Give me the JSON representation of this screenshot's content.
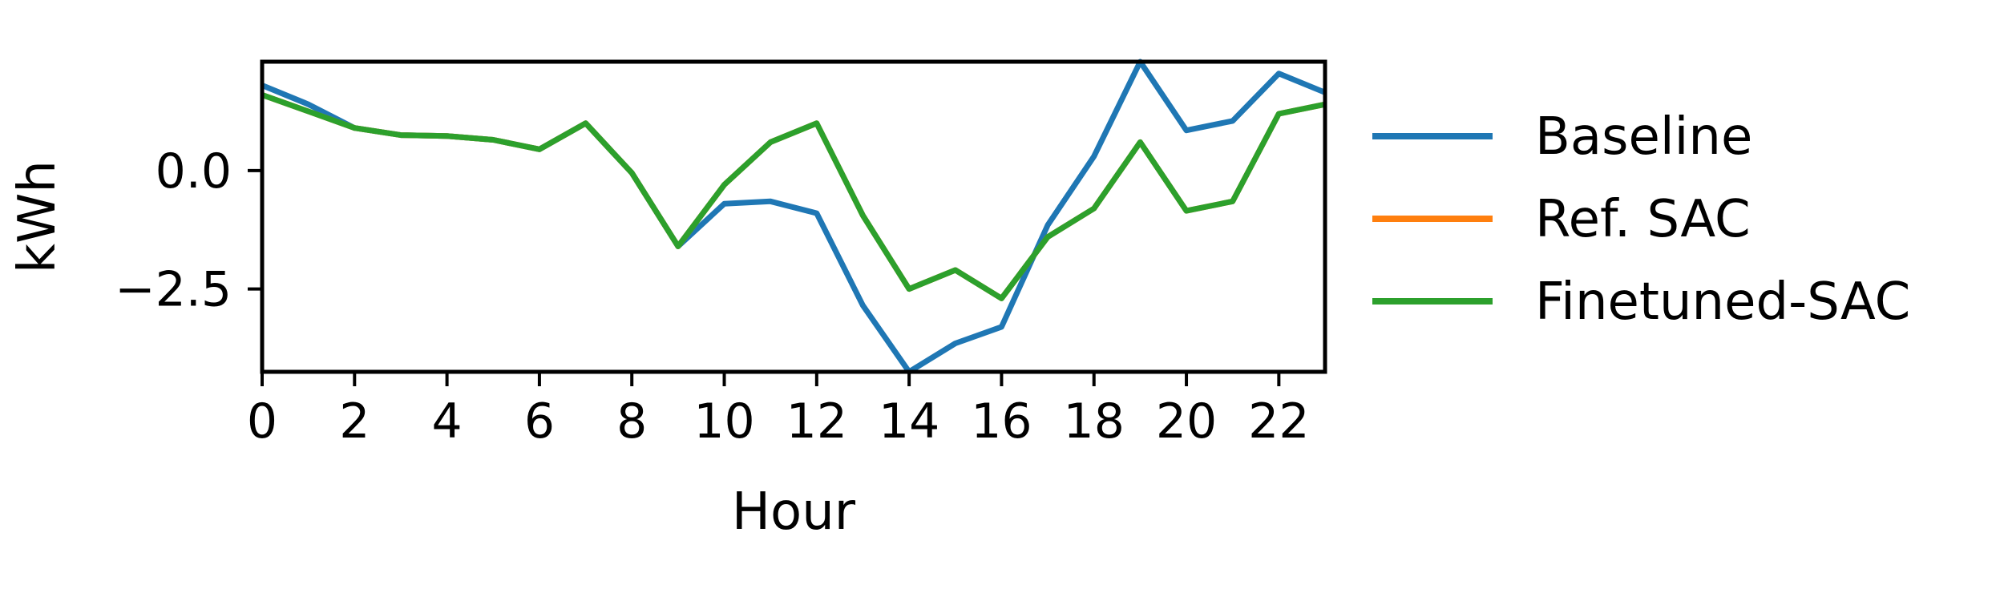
{
  "chart_data": {
    "type": "line",
    "title": "",
    "xlabel": "Hour",
    "ylabel": "kWh",
    "xlim": [
      0,
      23
    ],
    "ylim": [
      -4.25,
      2.3
    ],
    "xticks": [
      0,
      2,
      4,
      6,
      8,
      10,
      12,
      14,
      16,
      18,
      20,
      22
    ],
    "yticks": [
      -2.5,
      0.0
    ],
    "ytick_labels": [
      "−2.5",
      "0.0"
    ],
    "grid": false,
    "legend_position": "outside-right",
    "x": [
      0,
      1,
      2,
      3,
      4,
      5,
      6,
      7,
      8,
      9,
      10,
      11,
      12,
      13,
      14,
      15,
      16,
      17,
      18,
      19,
      20,
      21,
      22,
      23
    ],
    "series": [
      {
        "name": "Baseline",
        "color": "#1f77b4",
        "values": [
          1.8,
          1.4,
          0.9,
          0.75,
          0.73,
          0.65,
          0.45,
          1.0,
          -0.05,
          -1.6,
          -0.7,
          -0.65,
          -0.9,
          -2.85,
          -4.25,
          -3.65,
          -3.3,
          -1.15,
          0.3,
          2.3,
          0.85,
          1.05,
          2.05,
          1.65
        ]
      },
      {
        "name": "Ref. SAC",
        "color": "#ff7f0e",
        "values": [
          1.6,
          1.25,
          0.9,
          0.75,
          0.73,
          0.65,
          0.45,
          1.0,
          -0.05,
          -1.6,
          -0.3,
          0.6,
          1.0,
          -0.95,
          -2.5,
          -2.1,
          -2.7,
          -1.4,
          -0.8,
          0.6,
          -0.85,
          -0.65,
          1.2,
          1.4
        ]
      },
      {
        "name": "Finetuned-SAC",
        "color": "#2ca02c",
        "values": [
          1.6,
          1.25,
          0.9,
          0.75,
          0.73,
          0.65,
          0.45,
          1.0,
          -0.05,
          -1.6,
          -0.3,
          0.6,
          1.0,
          -0.95,
          -2.5,
          -2.1,
          -2.7,
          -1.4,
          -0.8,
          0.6,
          -0.85,
          -0.65,
          1.2,
          1.4
        ]
      }
    ]
  }
}
